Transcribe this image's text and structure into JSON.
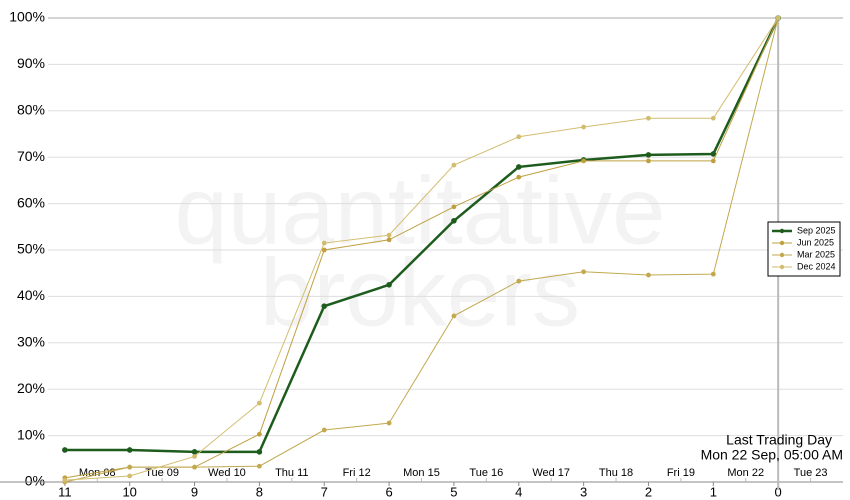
{
  "chart_data": {
    "type": "line",
    "watermark": [
      "quantitative",
      "brokers"
    ],
    "x": [
      11,
      10,
      9,
      8,
      7,
      6,
      5,
      4,
      3,
      2,
      1,
      0
    ],
    "xlim": [
      12,
      -1
    ],
    "xticks": [
      11,
      10,
      9,
      8,
      7,
      6,
      5,
      4,
      3,
      2,
      1,
      0
    ],
    "x2ticks": [
      {
        "value": 10.5,
        "label": "Mon 08"
      },
      {
        "value": 9.5,
        "label": "Tue 09"
      },
      {
        "value": 8.5,
        "label": "Wed 10"
      },
      {
        "value": 7.5,
        "label": "Thu 11"
      },
      {
        "value": 6.5,
        "label": "Fri 12"
      },
      {
        "value": 5.5,
        "label": "Mon 15"
      },
      {
        "value": 4.5,
        "label": "Tue 16"
      },
      {
        "value": 3.5,
        "label": "Wed 17"
      },
      {
        "value": 2.5,
        "label": "Thu 18"
      },
      {
        "value": 1.5,
        "label": "Fri 19"
      },
      {
        "value": 0.5,
        "label": "Mon 22"
      },
      {
        "value": -0.5,
        "label": "Tue 23"
      }
    ],
    "ylim": [
      0,
      100
    ],
    "yticks": [
      {
        "value": 0,
        "label": "0%"
      },
      {
        "value": 10,
        "label": "10%"
      },
      {
        "value": 20,
        "label": "20%"
      },
      {
        "value": 30,
        "label": "30%"
      },
      {
        "value": 40,
        "label": "40%"
      },
      {
        "value": 50,
        "label": "50%"
      },
      {
        "value": 60,
        "label": "60%"
      },
      {
        "value": 70,
        "label": "70%"
      },
      {
        "value": 80,
        "label": "80%"
      },
      {
        "value": 90,
        "label": "90%"
      },
      {
        "value": 100,
        "label": "100%"
      }
    ],
    "grid": true,
    "marker": {
      "x": 0,
      "label": "Last Trading Day",
      "sublabel": "Mon 22 Sep, 05:00 AM"
    },
    "legend": "right",
    "series": [
      {
        "name": "Sep 2025",
        "color": "#1e5c1e",
        "values": [
          6.9,
          6.9,
          6.5,
          6.5,
          37.9,
          42.5,
          56.3,
          67.9,
          69.4,
          70.5,
          70.7,
          100
        ]
      },
      {
        "name": "Jun 2025",
        "color": "#bfa040",
        "values": [
          0.9,
          3.2,
          3.2,
          10.3,
          50,
          52.2,
          59.3,
          65.7,
          69.2,
          69.2,
          69.2,
          100
        ]
      },
      {
        "name": "Mar 2025",
        "color": "#c2a94e",
        "values": [
          0,
          3.2,
          3.2,
          3.4,
          11.2,
          12.7,
          35.8,
          43.3,
          45.3,
          44.6,
          44.8,
          100
        ]
      },
      {
        "name": "Dec 2024",
        "color": "#d2bd6e",
        "values": [
          0.4,
          1.3,
          5.5,
          17,
          51.5,
          53.2,
          68.3,
          74.4,
          76.5,
          78.4,
          78.4,
          100
        ]
      }
    ]
  }
}
